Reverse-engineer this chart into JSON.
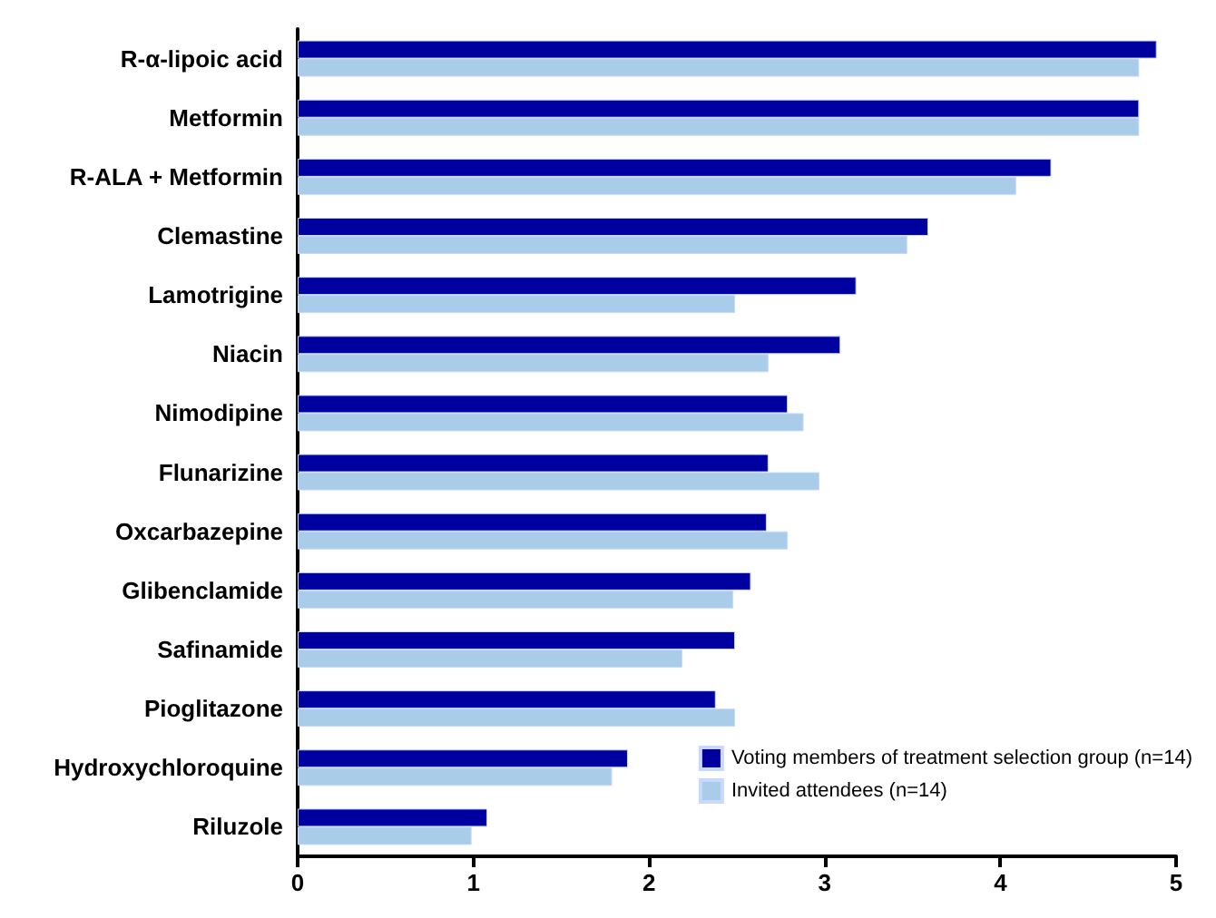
{
  "chart_data": {
    "type": "bar",
    "orientation": "horizontal",
    "categories": [
      "R-α-lipoic acid",
      "Metformin",
      "R-ALA + Metformin",
      "Clemastine",
      "Lamotrigine",
      "Niacin",
      "Nimodipine",
      "Flunarizine",
      "Oxcarbazepine",
      "Glibenclamide",
      "Safinamide",
      "Pioglitazone",
      "Hydroxychloroquine",
      "Riluzole"
    ],
    "series": [
      {
        "name": "Voting members of treatment selection group (n=14)",
        "color": "#0000a0",
        "values": [
          4.89,
          4.79,
          4.29,
          3.59,
          3.18,
          3.09,
          2.79,
          2.68,
          2.67,
          2.58,
          2.49,
          2.38,
          1.88,
          1.08
        ]
      },
      {
        "name": "Invited attendees (n=14)",
        "color": "#a9cce9",
        "values": [
          4.79,
          4.79,
          4.09,
          3.47,
          2.49,
          2.68,
          2.88,
          2.97,
          2.79,
          2.48,
          2.19,
          2.49,
          1.79,
          0.99
        ]
      }
    ],
    "xlim": [
      0,
      5
    ],
    "xticks": [
      0,
      1,
      2,
      3,
      4,
      5
    ],
    "grid": false,
    "legend": "bottom right"
  }
}
